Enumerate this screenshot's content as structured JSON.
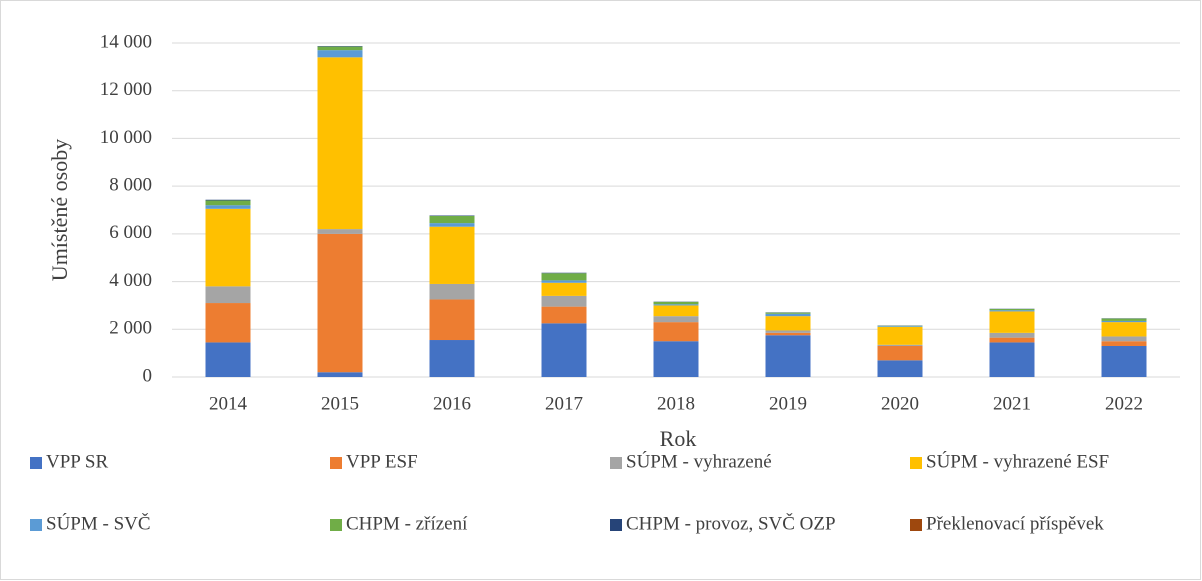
{
  "chart_data": {
    "type": "bar",
    "stacked": true,
    "y_label": "Umístěné osoby",
    "x_label": "Rok",
    "categories": [
      "2014",
      "2015",
      "2016",
      "2017",
      "2018",
      "2019",
      "2020",
      "2021",
      "2022"
    ],
    "series": [
      {
        "name": "VPP SR",
        "color": "#4472c4",
        "values": [
          1450,
          200,
          1550,
          2250,
          1500,
          1750,
          700,
          1450,
          1300
        ]
      },
      {
        "name": "VPP ESF",
        "color": "#ed7d31",
        "values": [
          1650,
          5800,
          1700,
          700,
          800,
          100,
          600,
          200,
          200
        ]
      },
      {
        "name": "SÚPM - vyhrazené",
        "color": "#a5a5a5",
        "values": [
          700,
          200,
          650,
          450,
          250,
          100,
          50,
          200,
          200
        ]
      },
      {
        "name": "SÚPM - vyhrazené ESF",
        "color": "#ffc000",
        "values": [
          3250,
          7200,
          2400,
          550,
          450,
          600,
          750,
          900,
          600
        ]
      },
      {
        "name": "SÚPM - SVČ",
        "color": "#5b9bd5",
        "values": [
          150,
          300,
          150,
          100,
          50,
          100,
          30,
          50,
          50
        ]
      },
      {
        "name": "CHPM - zřízení",
        "color": "#70ad47",
        "values": [
          200,
          150,
          300,
          300,
          100,
          50,
          20,
          50,
          100
        ]
      },
      {
        "name": "CHPM - provoz, SVČ OZP",
        "color": "#264478",
        "values": [
          30,
          20,
          20,
          20,
          10,
          10,
          10,
          10,
          10
        ]
      },
      {
        "name": "Překlenovací příspěvek",
        "color": "#9e480e",
        "values": [
          0,
          0,
          0,
          0,
          0,
          0,
          0,
          0,
          0
        ]
      }
    ],
    "ylim": [
      0,
      14000
    ],
    "yticks": [
      0,
      {
        "value": 2000,
        "label": "2 000"
      },
      {
        "value": 4000,
        "label": "4 000"
      },
      {
        "value": 6000,
        "label": "6 000"
      },
      {
        "value": 8000,
        "label": "8 000"
      },
      {
        "value": 10000,
        "label": "10 000"
      },
      {
        "value": 12000,
        "label": "12 000"
      },
      {
        "value": 14000,
        "label": "14 000"
      }
    ],
    "grid": true,
    "legend": "bottom"
  }
}
